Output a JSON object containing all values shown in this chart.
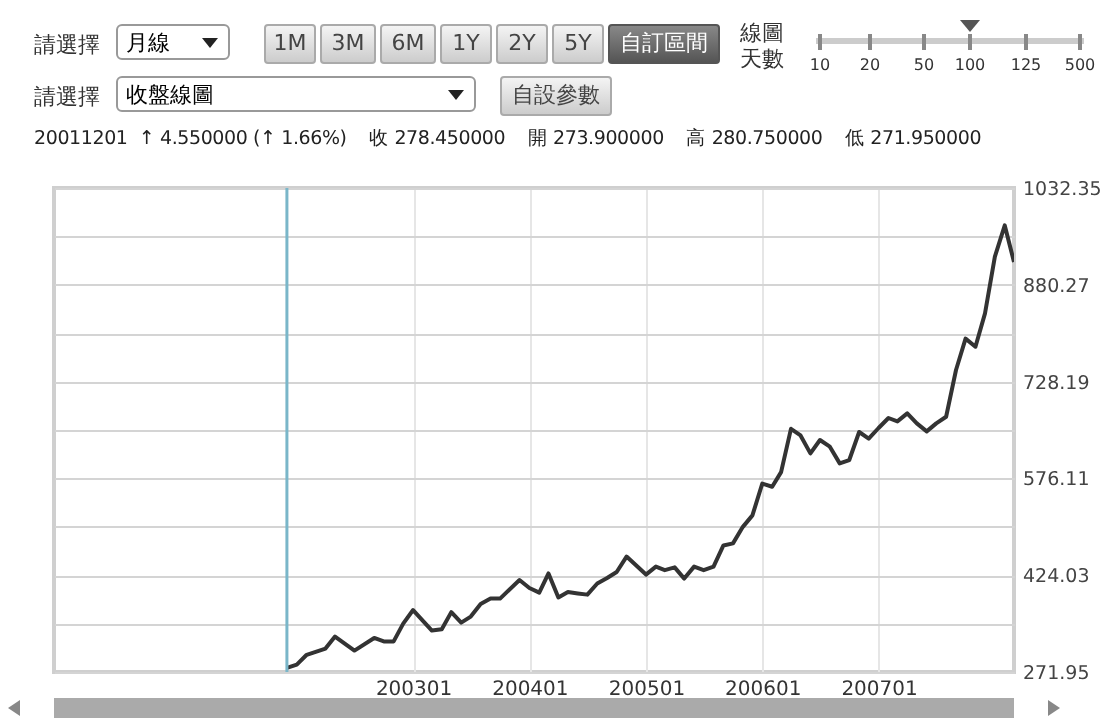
{
  "chart_data": {
    "type": "line",
    "subtitle": "20011201  ↑ 4.550000 (↑ 1.66%)    收 278.450000    開 273.900000    高 280.750000    低 271.950000",
    "annotations": [
      "請選擇",
      "月線",
      "1M",
      "3M",
      "6M",
      "1Y",
      "2Y",
      "5Y",
      "自訂區間",
      "線圖",
      "天數",
      "10",
      "20",
      "50",
      "100",
      "125",
      "500",
      "請選擇",
      "收盤線圖",
      "自設參數"
    ],
    "x": [
      "2001-12",
      "2002-01",
      "2002-02",
      "2002-04",
      "2002-05",
      "2002-07",
      "2002-09",
      "2002-10",
      "2002-11",
      "2002-12",
      "2003-01",
      "2003-03",
      "2003-04",
      "2003-05",
      "2003-06",
      "2003-07",
      "2003-08",
      "2003-09",
      "2003-10",
      "2003-12",
      "2004-01",
      "2004-02",
      "2004-03",
      "2004-04",
      "2004-05",
      "2004-06",
      "2004-07",
      "2004-08",
      "2004-09",
      "2004-10",
      "2004-11",
      "2005-01",
      "2005-02",
      "2005-03",
      "2005-04",
      "2005-05",
      "2005-06",
      "2005-07",
      "2005-08",
      "2005-09",
      "2005-10",
      "2005-11",
      "2005-12",
      "2006-01",
      "2006-02",
      "2006-03",
      "2006-04",
      "2006-05",
      "2006-06",
      "2006-07",
      "2006-08",
      "2006-09",
      "2006-10",
      "2006-11",
      "2006-12",
      "2007-01",
      "2007-02",
      "2007-03",
      "2007-04",
      "2007-05",
      "2007-06",
      "2007-07",
      "2007-08",
      "2007-09",
      "2007-10",
      "2007-11",
      "2007-12",
      "2008-01",
      "2008-02",
      "2008-03"
    ],
    "series": [
      {
        "color": "#333333",
        "values": [
          278.45,
          283.6,
          299,
          308.7,
          327.6,
          305.6,
          325.4,
          320,
          320,
          348,
          369.3,
          337,
          339,
          366,
          349.6,
          359,
          378.8,
          387.3,
          387.3,
          416.5,
          404,
          396.7,
          426.8,
          389,
          397.6,
          395.4,
          393.5,
          411,
          419.6,
          429,
          453.3,
          425,
          437.5,
          432,
          436.3,
          418.7,
          437.5,
          432,
          437.5,
          470.8,
          474,
          500,
          518,
          568,
          563,
          586,
          654,
          643.6,
          615.4,
          636.4,
          626,
          599.7,
          605,
          649,
          638.6,
          655.3,
          671,
          665.7,
          678.3,
          662.5,
          650,
          662.5,
          673,
          746.4,
          795.7,
          783,
          835.3,
          924.5,
          973.6,
          916
        ]
      }
    ],
    "xlim": [
      "1999-12",
      "2008-03"
    ],
    "xticks": [
      {
        "value": "2003-01",
        "label": "200301"
      },
      {
        "value": "2004-01",
        "label": "200401"
      },
      {
        "value": "2005-01",
        "label": "200501"
      },
      {
        "value": "2006-01",
        "label": "200601"
      },
      {
        "value": "2007-01",
        "label": "200701"
      }
    ],
    "ylim": [
      271.95,
      1032.35
    ],
    "yticks": [
      271.95,
      {
        "value": 347.99,
        "label": null
      },
      424.03,
      {
        "value": 500.07,
        "label": null
      },
      576.11,
      {
        "value": 652.15,
        "label": null
      },
      728.19,
      {
        "value": 804.23,
        "label": null
      },
      880.27,
      {
        "value": 956.31,
        "label": null
      },
      1032.35
    ],
    "ref_lines": [
      {
        "axis": "x",
        "value": "2001-12",
        "color": "#7ab6c9"
      }
    ],
    "grid": true,
    "marker": "none",
    "line_style": "solid"
  }
}
